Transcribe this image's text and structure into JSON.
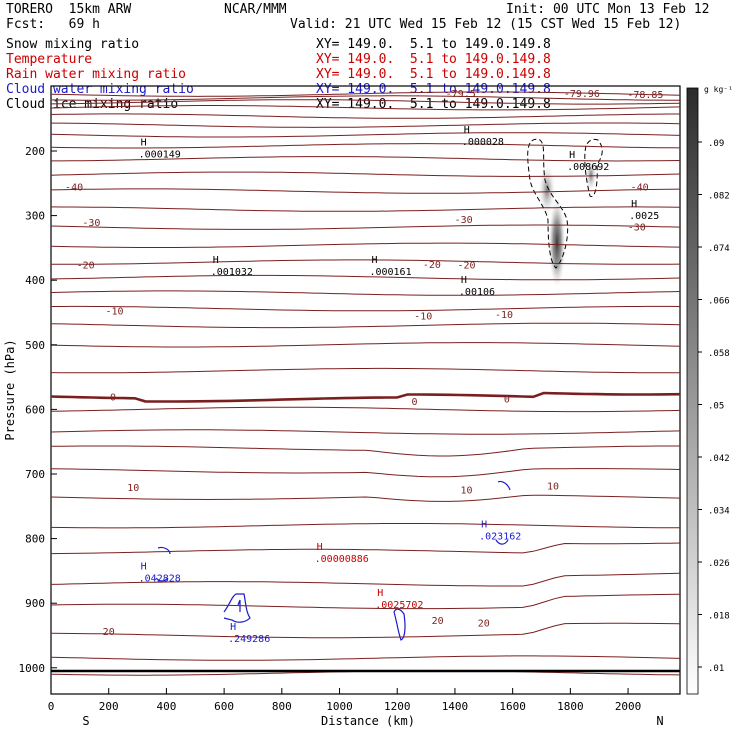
{
  "header": {
    "model": "TORERO  15km ARW",
    "center": "NCAR/MMM",
    "init": "Init: 00 UTC Mon 13 Feb 12",
    "fcst": "Fcst:   69 h",
    "valid": "Valid: 21 UTC Wed 15 Feb 12 (15 CST Wed 15 Feb 12)"
  },
  "fields": [
    {
      "name": "Snow mixing ratio",
      "xy": "XY= 149.0.  5.1 to 149.0.149.8",
      "color": "#000000"
    },
    {
      "name": "Temperature",
      "xy": "XY= 149.0.  5.1 to 149.0.149.8",
      "color": "#cc0000"
    },
    {
      "name": "Rain water mixing ratio",
      "xy": "XY= 149.0.  5.1 to 149.0.149.8",
      "color": "#cc0000"
    },
    {
      "name": "Cloud water mixing ratio",
      "xy": "XY= 149.0.  5.1 to 149.0.149.8",
      "color": "#0000cc"
    },
    {
      "name": "Cloud ice mixing ratio",
      "xy": "XY= 149.0.  5.1 to 149.0.149.8",
      "color": "#000000"
    }
  ],
  "colors": {
    "temp_line": "#7a1f1f",
    "cloud_water": "#1a1acc",
    "rain": "#cc0000",
    "text": "#000000"
  },
  "chart_data": {
    "type": "contour",
    "xlabel": "Distance (km)",
    "ylabel": "Pressure (hPa)",
    "xlim": [
      0,
      2180
    ],
    "ylim": [
      1030,
      100
    ],
    "x_ticks": [
      0,
      200,
      400,
      600,
      800,
      1000,
      1200,
      1400,
      1600,
      1800,
      2000
    ],
    "y_ticks": [
      200,
      300,
      400,
      500,
      600,
      700,
      800,
      900,
      1000
    ],
    "left_end": "S",
    "right_end": "N",
    "colorbar": {
      "units": "g kg⁻¹",
      "labels": [
        ".09",
        ".082",
        ".074",
        ".066",
        ".058",
        ".05",
        ".042",
        ".034",
        ".026",
        ".018",
        ".01"
      ]
    },
    "temperature_labels": [
      {
        "text": "-79.96",
        "x": 1840,
        "p": 110
      },
      {
        "text": "-78.85",
        "x": 2060,
        "p": 112
      },
      {
        "text": "-79.5",
        "x": 1420,
        "p": 110
      },
      {
        "text": "-40",
        "x": 80,
        "p": 255
      },
      {
        "text": "-40",
        "x": 2040,
        "p": 255
      },
      {
        "text": "-30",
        "x": 140,
        "p": 310
      },
      {
        "text": "-30",
        "x": 1430,
        "p": 305
      },
      {
        "text": "-30",
        "x": 2030,
        "p": 317
      },
      {
        "text": "-20",
        "x": 120,
        "p": 376
      },
      {
        "text": "-20",
        "x": 1320,
        "p": 375
      },
      {
        "text": "-20",
        "x": 1440,
        "p": 376
      },
      {
        "text": "-10",
        "x": 220,
        "p": 447
      },
      {
        "text": "-10",
        "x": 1290,
        "p": 455
      },
      {
        "text": "-10",
        "x": 1570,
        "p": 452
      },
      {
        "text": "0",
        "x": 215,
        "p": 580
      },
      {
        "text": "0",
        "x": 1260,
        "p": 587
      },
      {
        "text": "0",
        "x": 1580,
        "p": 583
      },
      {
        "text": "10",
        "x": 285,
        "p": 720
      },
      {
        "text": "10",
        "x": 1440,
        "p": 724
      },
      {
        "text": "10",
        "x": 1740,
        "p": 718
      },
      {
        "text": "20",
        "x": 200,
        "p": 943
      },
      {
        "text": "20",
        "x": 1340,
        "p": 926
      },
      {
        "text": "20",
        "x": 1500,
        "p": 930
      }
    ],
    "max_labels": [
      {
        "text": ".000149",
        "x": 380,
        "p": 207,
        "color": "#000000"
      },
      {
        "text": ".000028",
        "x": 1500,
        "p": 188,
        "color": "#000000"
      },
      {
        "text": ".008692",
        "x": 1865,
        "p": 226,
        "color": "#000000"
      },
      {
        "text": ".0025",
        "x": 2080,
        "p": 302,
        "color": "#000000"
      },
      {
        "text": ".001032",
        "x": 630,
        "p": 389,
        "color": "#000000"
      },
      {
        "text": ".000161",
        "x": 1180,
        "p": 389,
        "color": "#000000"
      },
      {
        "text": ".00106",
        "x": 1490,
        "p": 420,
        "color": "#000000"
      },
      {
        "text": ".00000886",
        "x": 990,
        "p": 833,
        "color": "#cc0000"
      },
      {
        "text": ".0025702",
        "x": 1200,
        "p": 904,
        "color": "#cc0000"
      },
      {
        "text": ".023162",
        "x": 1560,
        "p": 798,
        "color": "#1a1acc"
      },
      {
        "text": ".042828",
        "x": 380,
        "p": 863,
        "color": "#1a1acc"
      },
      {
        "text": ".249286",
        "x": 690,
        "p": 957,
        "color": "#1a1acc"
      }
    ]
  }
}
